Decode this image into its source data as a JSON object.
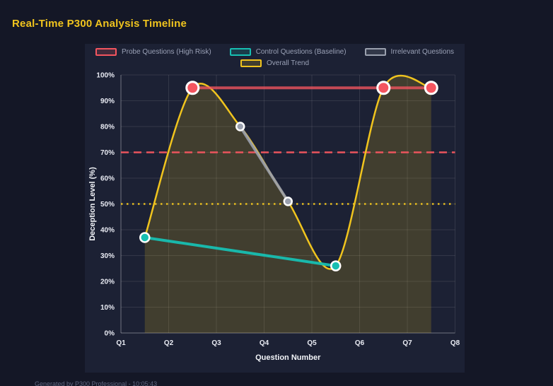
{
  "page": {
    "title": "Real-Time P300 Analysis Timeline",
    "footer": "Generated by P300 Professional - 10:05:43"
  },
  "colors": {
    "background": "#141726",
    "panel_background": "#1c2134",
    "title": "#f0c41e",
    "grid": "rgba(255,255,255,0.10)",
    "axis_border": "rgba(255,255,255,0.30)",
    "tick_label": "#e9ebf3",
    "axis_title": "#f2f4f8",
    "legend_text": "#9aa1b6",
    "footer_text": "#5f6680",
    "point_border": "#ffffff"
  },
  "chart_data": {
    "type": "line",
    "xlabel": "Question Number",
    "ylabel": "Deception Level (%)",
    "x_ticks": [
      "Q1",
      "Q2",
      "Q3",
      "Q4",
      "Q5",
      "Q6",
      "Q7",
      "Q8"
    ],
    "x_range": [
      1,
      8
    ],
    "ylim": [
      0,
      100
    ],
    "y_tick_step": 10,
    "y_tick_suffix": "%",
    "grid": true,
    "legend_position": "top",
    "series": [
      {
        "name": "Probe Questions (High Risk)",
        "color": "#f4555f",
        "line_width": 4,
        "line_opacity": 0.78,
        "point_radius": 8.5,
        "points": [
          {
            "x": 2.5,
            "y": 95
          },
          {
            "x": 6.5,
            "y": 95
          },
          {
            "x": 7.5,
            "y": 95
          }
        ]
      },
      {
        "name": "Control Questions (Baseline)",
        "color": "#17bfb2",
        "line_width": 4,
        "line_opacity": 0.95,
        "point_radius": 6.5,
        "points": [
          {
            "x": 1.5,
            "y": 37
          },
          {
            "x": 5.5,
            "y": 26
          }
        ]
      },
      {
        "name": "Irrelevant Questions",
        "color": "#9aa0ae",
        "line_width": 4,
        "line_opacity": 0.9,
        "point_radius": 5.5,
        "points": [
          {
            "x": 3.5,
            "y": 80
          },
          {
            "x": 4.5,
            "y": 51
          }
        ]
      },
      {
        "name": "Overall Trend",
        "color": "#f0c41e",
        "line_width": 2.5,
        "line_opacity": 1,
        "point_radius": 0,
        "smooth": true,
        "fill": true,
        "fill_opacity": 0.18,
        "points": [
          {
            "x": 1.5,
            "y": 37
          },
          {
            "x": 2.5,
            "y": 95
          },
          {
            "x": 3.5,
            "y": 80
          },
          {
            "x": 4.5,
            "y": 51
          },
          {
            "x": 5.5,
            "y": 26
          },
          {
            "x": 6.5,
            "y": 95
          },
          {
            "x": 7.5,
            "y": 95
          }
        ]
      }
    ],
    "threshold_lines": [
      {
        "y": 70,
        "color": "#f4555f",
        "style": "dashed"
      },
      {
        "y": 50,
        "color": "#f0c41e",
        "style": "dotted"
      }
    ]
  }
}
